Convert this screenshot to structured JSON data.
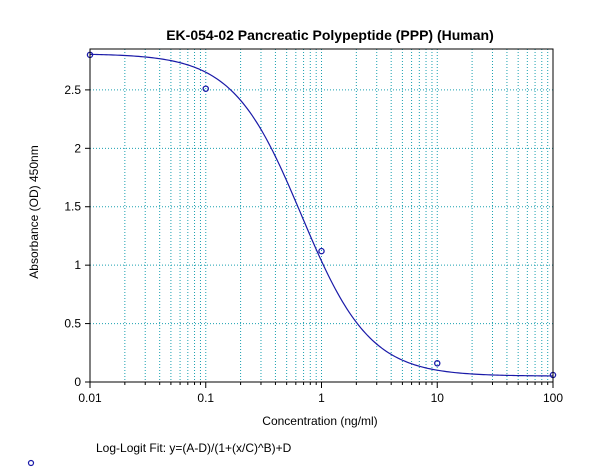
{
  "chart_data": {
    "type": "scatter",
    "title": "EK-054-02 Pancreatic Polypeptide (PPP) (Human)",
    "xlabel": "Concentration (ng/ml)",
    "ylabel": "Absorbance (OD) 450nm",
    "x_scale": "log",
    "xlim": [
      0.01,
      100
    ],
    "ylim": [
      0,
      2.85
    ],
    "grid": true,
    "x_tick_labels": [
      "0.01",
      "0.1",
      "1",
      "10",
      "100"
    ],
    "y_tick_labels": [
      "0",
      "0.5",
      "1",
      "1.5",
      "2",
      "2.5"
    ],
    "y_ticks": [
      0,
      0.5,
      1,
      1.5,
      2,
      2.5
    ],
    "series": [
      {
        "x": [
          0.01,
          0.1,
          1,
          10,
          100
        ],
        "y": [
          2.8,
          2.51,
          1.12,
          0.16,
          0.06
        ],
        "marker": "circle",
        "color": "#1a1aa8"
      }
    ],
    "fit": {
      "model": "log-logit",
      "label": "Log-Logit Fit: y=(A-D)/(1+(x/C)^B)+D",
      "A": 2.81,
      "B": 1.47,
      "C": 0.67,
      "D": 0.05,
      "color": "#1a1aa8"
    },
    "grid_color": "#1aa0b0",
    "axis_color": "#000000"
  }
}
